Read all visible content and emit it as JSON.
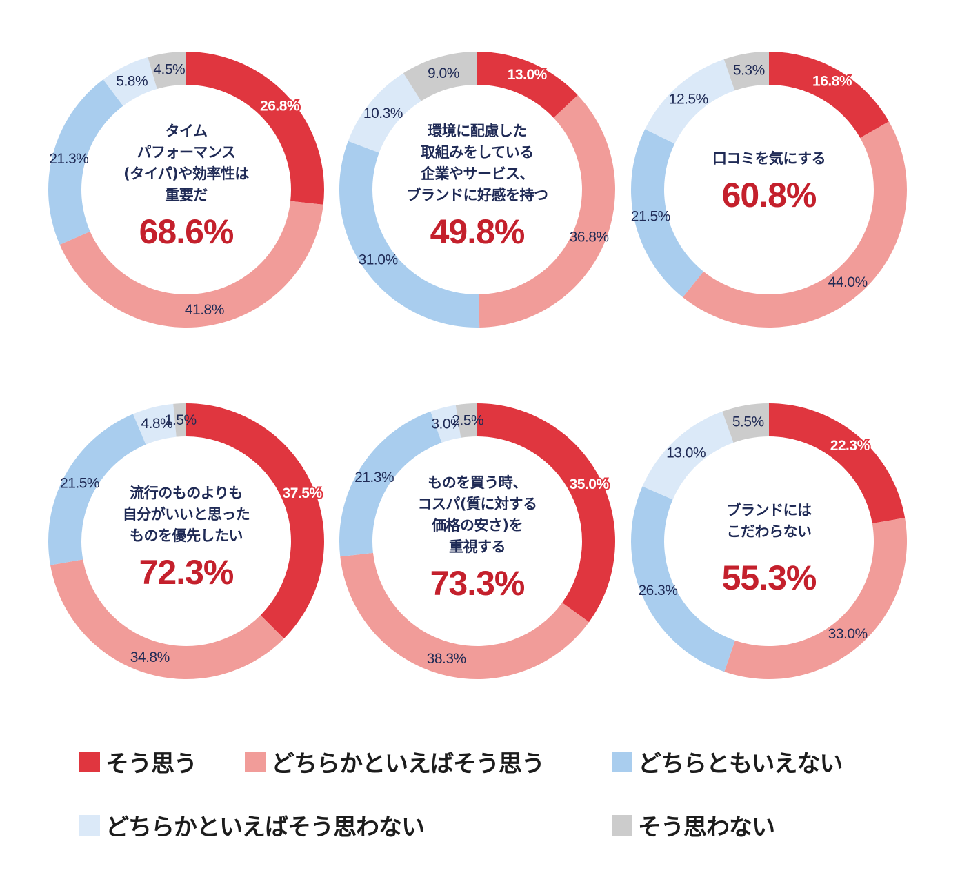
{
  "chart_data": [
    {
      "type": "pie",
      "title": "タイム\nパフォーマンス\n(タイパ)や効率性は\n重要だ",
      "total": "68.6%",
      "categories": [
        "そう思う",
        "どちらかといえばそう思う",
        "どちらともいえない",
        "どちらかといえばそう思わない",
        "そう思わない"
      ],
      "values": [
        26.8,
        41.8,
        21.3,
        5.8,
        4.5
      ],
      "labels": [
        "26.8%",
        "41.8%",
        "21.3%",
        "5.8%",
        "4.5%"
      ]
    },
    {
      "type": "pie",
      "title": "環境に配慮した\n取組みをしている\n企業やサービス、\nブランドに好感を持つ",
      "total": "49.8%",
      "categories": [
        "そう思う",
        "どちらかといえばそう思う",
        "どちらともいえない",
        "どちらかといえばそう思わない",
        "そう思わない"
      ],
      "values": [
        13.0,
        36.8,
        31.0,
        10.3,
        9.0
      ],
      "labels": [
        "13.0%",
        "36.8%",
        "31.0%",
        "10.3%",
        "9.0%"
      ]
    },
    {
      "type": "pie",
      "title": "口コミを気にする",
      "total": "60.8%",
      "categories": [
        "そう思う",
        "どちらかといえばそう思う",
        "どちらともいえない",
        "どちらかといえばそう思わない",
        "そう思わない"
      ],
      "values": [
        16.8,
        44.0,
        21.5,
        12.5,
        5.3
      ],
      "labels": [
        "16.8%",
        "44.0%",
        "21.5%",
        "12.5%",
        "5.3%"
      ]
    },
    {
      "type": "pie",
      "title": "流行のものよりも\n自分がいいと思った\nものを優先したい",
      "total": "72.3%",
      "categories": [
        "そう思う",
        "どちらかといえばそう思う",
        "どちらともいえない",
        "どちらかといえばそう思わない",
        "そう思わない"
      ],
      "values": [
        37.5,
        34.8,
        21.5,
        4.8,
        1.5
      ],
      "labels": [
        "37.5%",
        "34.8%",
        "21.5%",
        "4.8%",
        "1.5%"
      ]
    },
    {
      "type": "pie",
      "title": "ものを買う時、\nコスパ(質に対する\n価格の安さ)を\n重視する",
      "total": "73.3%",
      "categories": [
        "そう思う",
        "どちらかといえばそう思う",
        "どちらともいえない",
        "どちらかといえばそう思わない",
        "そう思わない"
      ],
      "values": [
        35.0,
        38.3,
        21.3,
        3.0,
        2.5
      ],
      "labels": [
        "35.0%",
        "38.3%",
        "21.3%",
        "3.0%",
        "2.5%"
      ]
    },
    {
      "type": "pie",
      "title": "ブランドには\nこだわらない",
      "total": "55.3%",
      "categories": [
        "そう思う",
        "どちらかといえばそう思う",
        "どちらともいえない",
        "どちらかといえばそう思わない",
        "そう思わない"
      ],
      "values": [
        22.3,
        33.0,
        26.3,
        13.0,
        5.5
      ],
      "labels": [
        "22.3%",
        "33.0%",
        "26.3%",
        "13.0%",
        "5.5%"
      ]
    }
  ],
  "colors": [
    "#e0363f",
    "#f19c99",
    "#a9cdee",
    "#dbe9f8",
    "#cccccc"
  ],
  "legend": [
    {
      "label": "そう思う",
      "color": "#e0363f"
    },
    {
      "label": "どちらかといえばそう思う",
      "color": "#f19c99"
    },
    {
      "label": "どちらともいえない",
      "color": "#a9cdee"
    },
    {
      "label": "どちらかといえばそう思わない",
      "color": "#dbe9f8"
    },
    {
      "label": "そう思わない",
      "color": "#cccccc"
    }
  ]
}
